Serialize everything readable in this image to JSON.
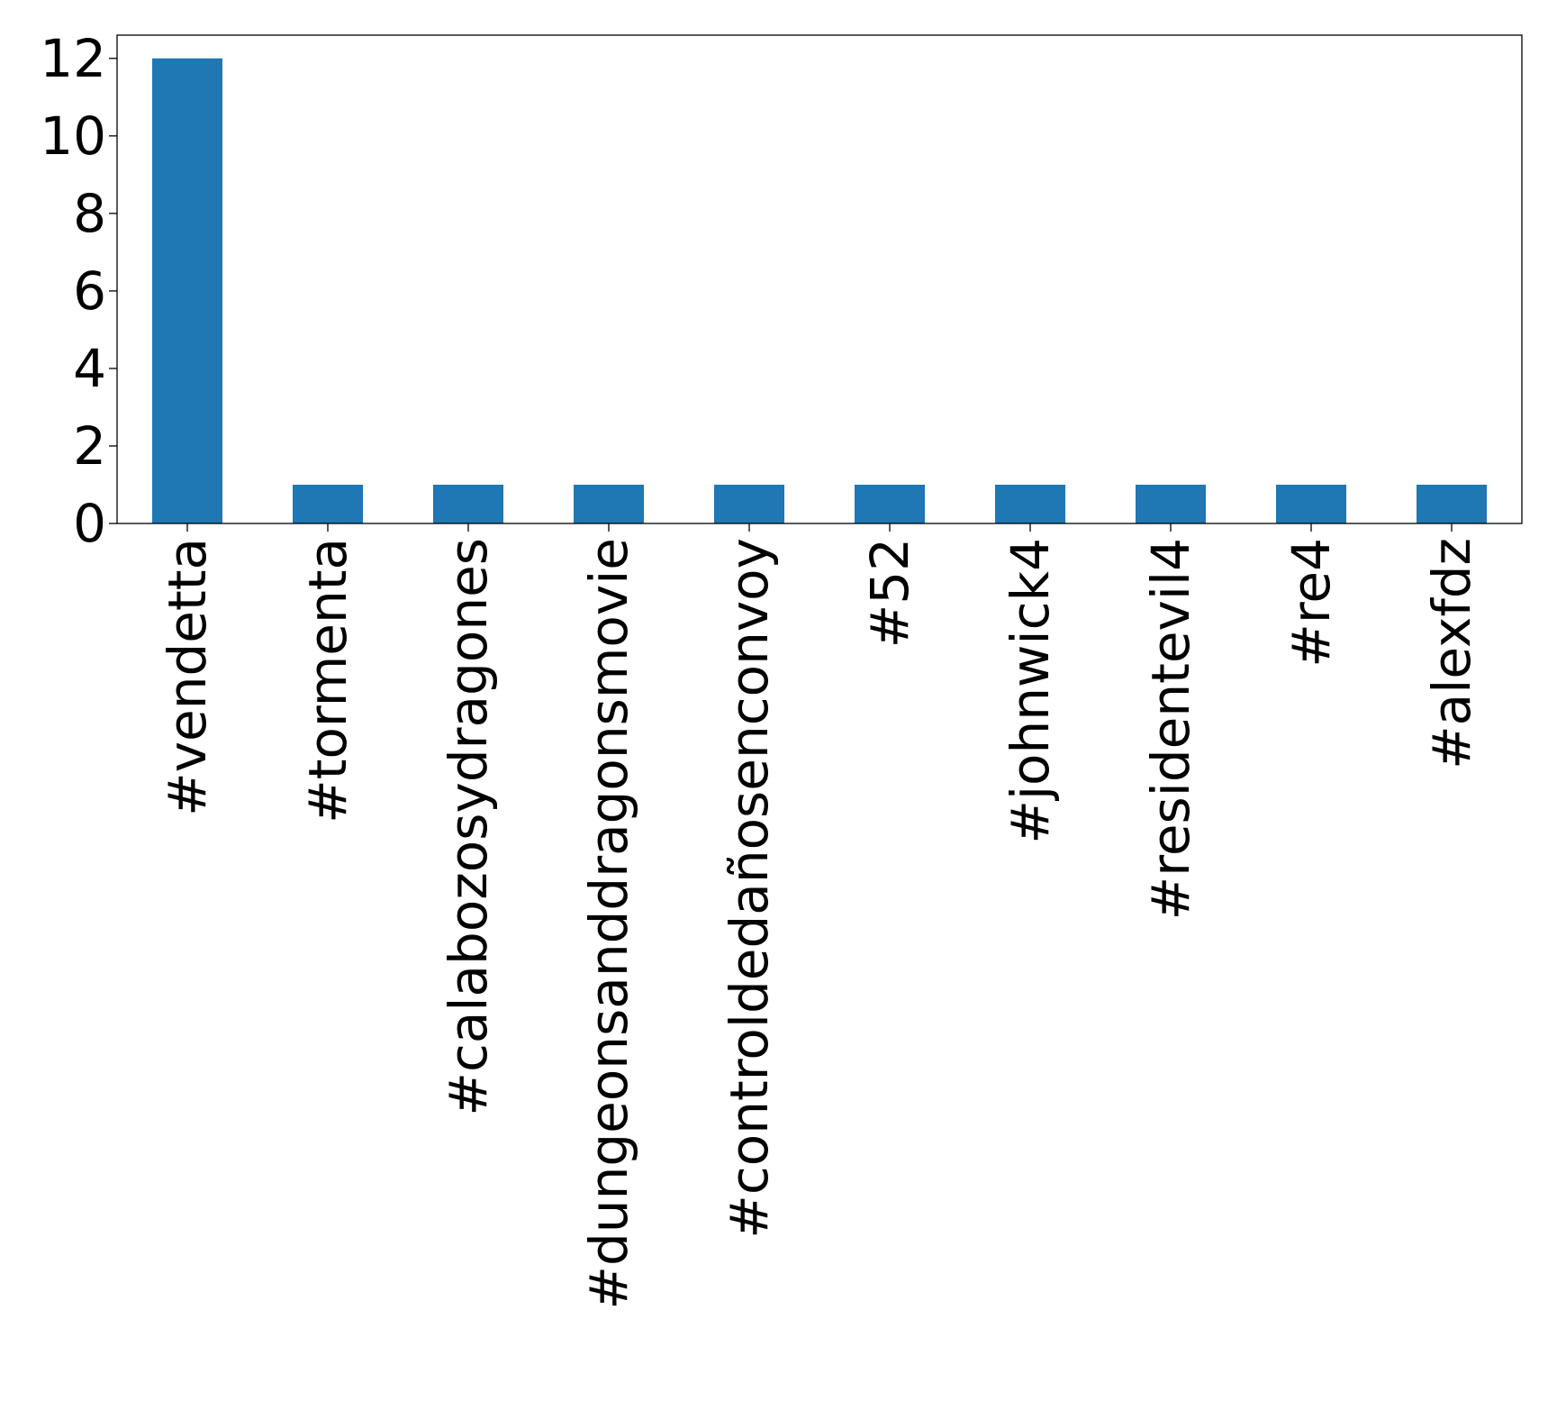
{
  "chart_data": {
    "type": "bar",
    "title": "",
    "xlabel": "",
    "ylabel": "",
    "categories": [
      "#vendetta",
      "#tormenta",
      "#calabozosydragones",
      "#dungeonsanddragonsmovie",
      "#controldedañosenconvoy",
      "#52",
      "#johnwick4",
      "#residentevil4",
      "#re4",
      "#alexfdz"
    ],
    "values": [
      12,
      1,
      1,
      1,
      1,
      1,
      1,
      1,
      1,
      1
    ],
    "ylim": [
      0,
      12.6
    ],
    "yticks": [
      0,
      2,
      4,
      6,
      8,
      10,
      12
    ],
    "grid": false,
    "legend": "none",
    "bar_color": "#1f77b4"
  }
}
